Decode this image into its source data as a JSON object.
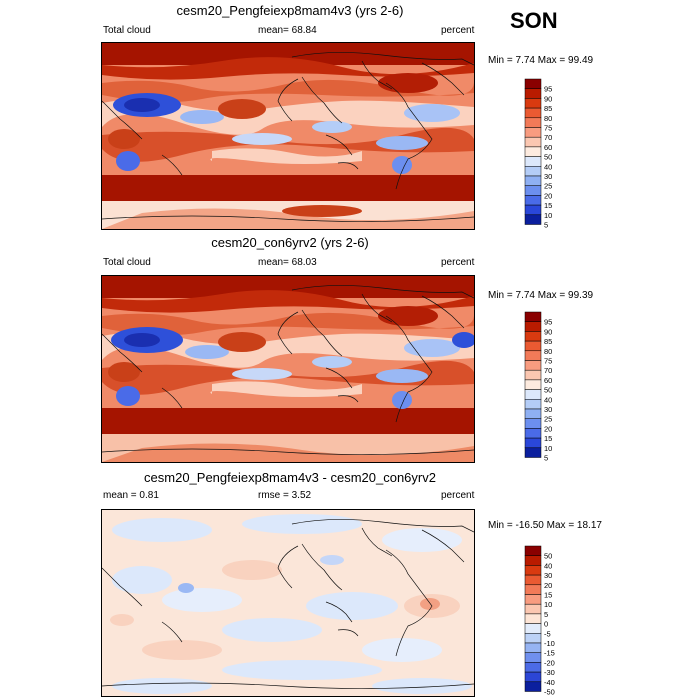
{
  "season": "SON",
  "panels": [
    {
      "title": "cesm20_Pengfeiexp8mam4v3 (yrs 2-6)",
      "left_label": "Total cloud",
      "center_label": "mean=  68.84",
      "right_label": "percent",
      "minmax": "Min =   7.74 Max =  99.49",
      "colorbar_labels": [
        "95",
        "90",
        "85",
        "80",
        "75",
        "70",
        "60",
        "50",
        "40",
        "30",
        "25",
        "20",
        "15",
        "10",
        "5"
      ],
      "colorbar_colors": [
        "#8a0000",
        "#b91b00",
        "#d93a10",
        "#ea5a32",
        "#f27a58",
        "#f89c80",
        "#fbc7b1",
        "#fdebdf",
        "#dce8fb",
        "#b4cdf7",
        "#8fb0f3",
        "#6c8fef",
        "#4a6be8",
        "#2a47d9",
        "#0b1f9e"
      ]
    },
    {
      "title": "cesm20_con6yrv2 (yrs 2-6)",
      "left_label": "Total cloud",
      "center_label": "mean=  68.03",
      "right_label": "percent",
      "minmax": "Min =   7.74 Max =  99.39",
      "colorbar_labels": [
        "95",
        "90",
        "85",
        "80",
        "75",
        "70",
        "60",
        "50",
        "40",
        "30",
        "25",
        "20",
        "15",
        "10",
        "5"
      ],
      "colorbar_colors": [
        "#8a0000",
        "#b91b00",
        "#d93a10",
        "#ea5a32",
        "#f27a58",
        "#f89c80",
        "#fbc7b1",
        "#fdebdf",
        "#dce8fb",
        "#b4cdf7",
        "#8fb0f3",
        "#6c8fef",
        "#4a6be8",
        "#2a47d9",
        "#0b1f9e"
      ]
    },
    {
      "title": "cesm20_Pengfeiexp8mam4v3 - cesm20_con6yrv2",
      "left_label": "mean =   0.81",
      "center_label": "rmse =   3.52",
      "right_label": "percent",
      "minmax": "Min = -16.50 Max =  18.17",
      "colorbar_labels": [
        "50",
        "40",
        "30",
        "20",
        "15",
        "10",
        "5",
        "0",
        "-5",
        "-10",
        "-15",
        "-20",
        "-30",
        "-40",
        "-50"
      ],
      "colorbar_colors": [
        "#8a0000",
        "#b91b00",
        "#d93a10",
        "#ea5a32",
        "#f27a58",
        "#f89c80",
        "#fbc7b1",
        "#fde5d6",
        "#e2ecfb",
        "#bcd2f7",
        "#96b4f3",
        "#7090ee",
        "#4c6be6",
        "#2c46d6",
        "#0b1f9e"
      ]
    }
  ]
}
